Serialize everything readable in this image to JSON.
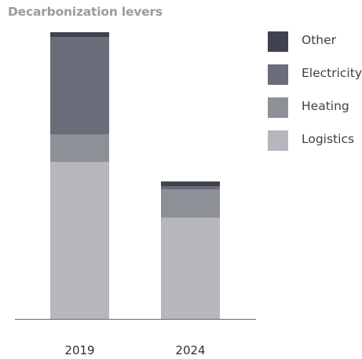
{
  "chart_data": {
    "type": "bar",
    "stacked": true,
    "title": "Decarbonization levers",
    "xlabel": "",
    "ylabel": "",
    "categories": [
      "2019",
      "2024"
    ],
    "series": [
      {
        "name": "Logistics",
        "values": [
          200,
          129
        ],
        "color": "#b6b7bd"
      },
      {
        "name": "Heating",
        "values": [
          35,
          36
        ],
        "color": "#8e9098"
      },
      {
        "name": "Electricity",
        "values": [
          124,
          4
        ],
        "color": "#6a6d7a"
      },
      {
        "name": "Other",
        "values": [
          6,
          6
        ],
        "color": "#40424f"
      }
    ],
    "legend_order": [
      "Other",
      "Electricity",
      "Heating",
      "Logistics"
    ],
    "legend_position": "right",
    "ylim": [
      0,
      370
    ],
    "grid": false
  }
}
